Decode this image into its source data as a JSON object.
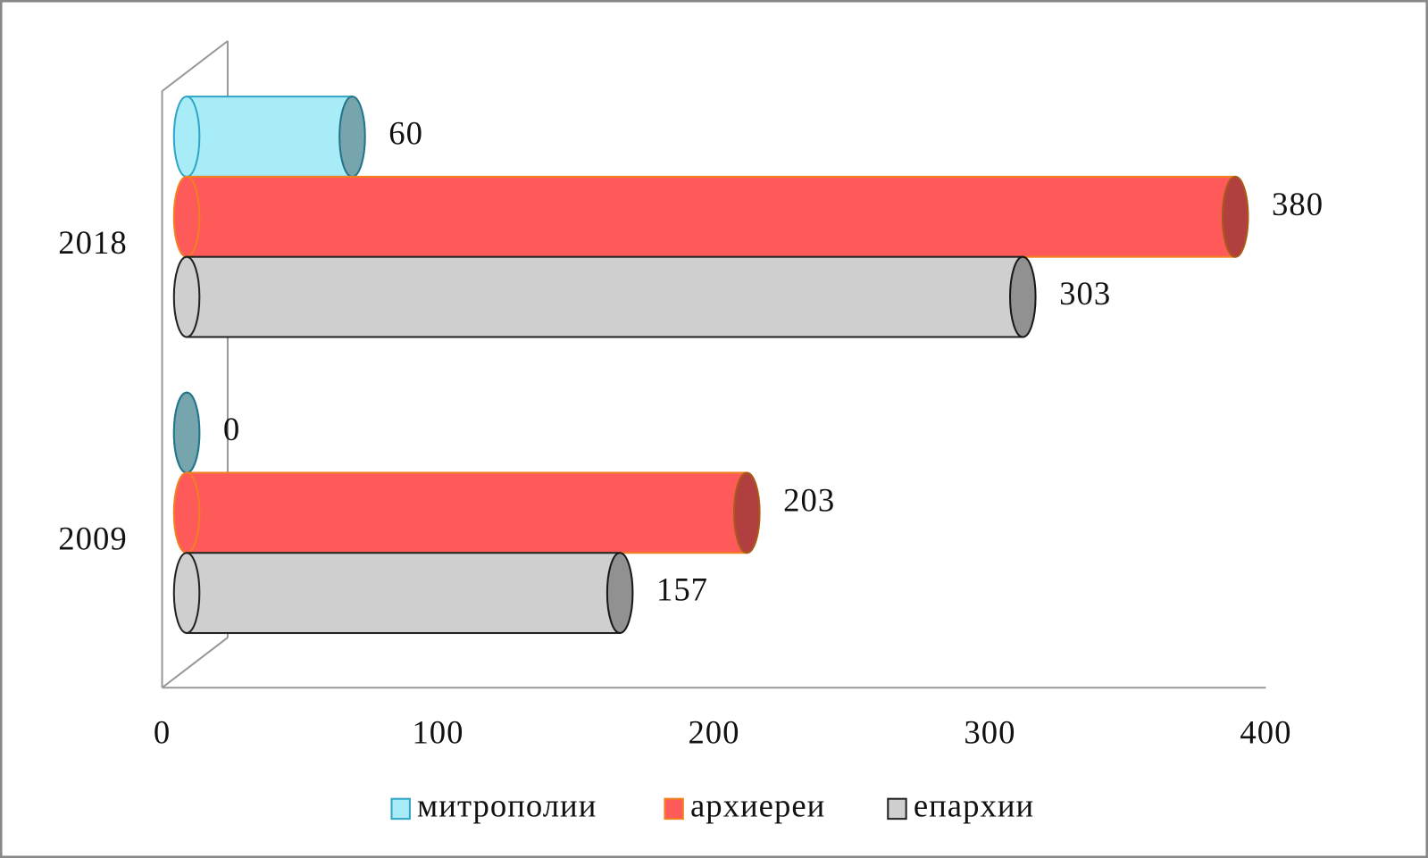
{
  "chart_data": {
    "type": "bar",
    "orientation": "horizontal",
    "categories": [
      "2009",
      "2018"
    ],
    "series": [
      {
        "name": "митрополии",
        "color": "#a8ecf7",
        "stroke": "#31a5c6",
        "values": [
          0,
          60
        ]
      },
      {
        "name": "архиереи",
        "color": "#ff5a5a",
        "stroke": "#f08020",
        "values": [
          203,
          380
        ]
      },
      {
        "name": "епархии",
        "color": "#cfcfcf",
        "stroke": "#222222",
        "values": [
          157,
          303
        ]
      }
    ],
    "xlim": [
      0,
      400
    ],
    "xticks": [
      0,
      100,
      200,
      300,
      400
    ],
    "legend": "bottom"
  }
}
